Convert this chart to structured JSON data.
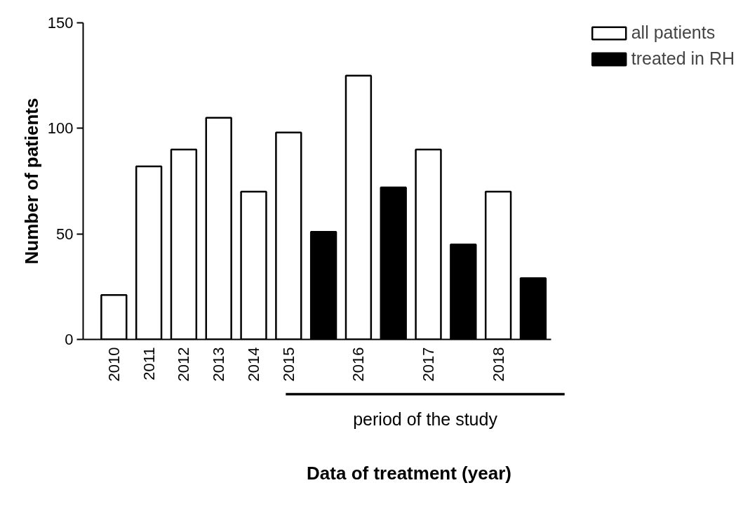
{
  "chart_data": {
    "type": "bar",
    "categories": [
      "2010",
      "2011",
      "2012",
      "2013",
      "2014",
      "2015",
      null,
      "2016",
      null,
      "2017",
      null,
      "2018",
      null
    ],
    "series": [
      {
        "name": "all patients",
        "color": "#ffffff",
        "values": [
          21,
          82,
          90,
          105,
          70,
          98,
          null,
          125,
          null,
          90,
          null,
          70,
          null
        ]
      },
      {
        "name": "treated in RH",
        "color": "#000000",
        "values": [
          null,
          null,
          null,
          null,
          null,
          null,
          51,
          null,
          72,
          null,
          45,
          null,
          29
        ]
      }
    ],
    "xlabel": "Data of treatment (year)",
    "ylabel": "Number of patients",
    "ylim": [
      0,
      150
    ],
    "yticks": [
      0,
      50,
      100,
      150
    ],
    "grid": false,
    "legend": "top right",
    "annotations": [
      "period of the study"
    ]
  }
}
